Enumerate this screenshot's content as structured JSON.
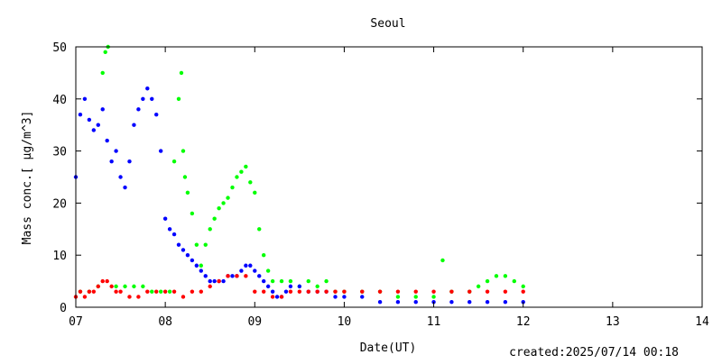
{
  "chart_data": {
    "type": "scatter",
    "title": "Seoul",
    "xlabel": "Date(UT)",
    "ylabel": "Mass conc.[ μg/m^3]",
    "xlim": [
      7,
      14
    ],
    "ylim": [
      0,
      50
    ],
    "xticks": [
      7,
      8,
      9,
      10,
      11,
      12,
      13,
      14
    ],
    "xtick_labels": [
      "07",
      "08",
      "09",
      "10",
      "11",
      "12",
      "13",
      "14"
    ],
    "yticks": [
      0,
      10,
      20,
      30,
      40,
      50
    ],
    "ytick_labels": [
      "0",
      "10",
      "20",
      "30",
      "40",
      "50"
    ],
    "grid": false,
    "series": [
      {
        "color": "#00ff00",
        "x": [
          7.05,
          7.15,
          7.25,
          7.3,
          7.33,
          7.36,
          7.45,
          7.55,
          7.65,
          7.75,
          7.85,
          7.95,
          8.05,
          8.1,
          8.15,
          8.18,
          8.2,
          8.22,
          8.25,
          8.3,
          8.35,
          8.4,
          8.45,
          8.5,
          8.55,
          8.6,
          8.65,
          8.7,
          8.75,
          8.8,
          8.85,
          8.9,
          8.95,
          9.0,
          9.05,
          9.1,
          9.15,
          9.2,
          9.3,
          9.4,
          9.5,
          9.6,
          9.7,
          9.8,
          9.9,
          10.0,
          10.2,
          10.4,
          10.6,
          10.8,
          11.0,
          11.1,
          11.2,
          11.4,
          11.5,
          11.6,
          11.7,
          11.8,
          11.9,
          12.0
        ],
        "y": [
          3,
          3,
          4,
          45,
          49,
          50,
          4,
          4,
          4,
          4,
          3,
          3,
          3,
          28,
          40,
          45,
          30,
          25,
          22,
          18,
          12,
          8,
          12,
          15,
          17,
          19,
          20,
          21,
          23,
          25,
          26,
          27,
          24,
          22,
          15,
          10,
          7,
          5,
          5,
          5,
          4,
          5,
          4,
          5,
          3,
          3,
          3,
          3,
          2,
          2,
          2,
          9,
          3,
          3,
          4,
          5,
          6,
          6,
          5,
          4
        ]
      },
      {
        "color": "#0000ff",
        "x": [
          7.0,
          7.05,
          7.1,
          7.15,
          7.2,
          7.25,
          7.3,
          7.35,
          7.4,
          7.45,
          7.5,
          7.55,
          7.6,
          7.65,
          7.7,
          7.75,
          7.8,
          7.85,
          7.9,
          7.95,
          8.0,
          8.05,
          8.1,
          8.15,
          8.2,
          8.25,
          8.3,
          8.35,
          8.4,
          8.45,
          8.5,
          8.55,
          8.6,
          8.65,
          8.7,
          8.75,
          8.8,
          8.85,
          8.9,
          8.95,
          9.0,
          9.05,
          9.1,
          9.15,
          9.2,
          9.25,
          9.3,
          9.35,
          9.4,
          9.5,
          9.6,
          9.7,
          9.8,
          9.9,
          10.0,
          10.2,
          10.4,
          10.6,
          10.8,
          11.0,
          11.2,
          11.4,
          11.6,
          11.8,
          12.0
        ],
        "y": [
          25,
          37,
          40,
          36,
          34,
          35,
          38,
          32,
          28,
          30,
          25,
          23,
          28,
          35,
          38,
          40,
          42,
          40,
          37,
          30,
          17,
          15,
          14,
          12,
          11,
          10,
          9,
          8,
          7,
          6,
          5,
          5,
          5,
          5,
          6,
          6,
          6,
          7,
          8,
          8,
          7,
          6,
          5,
          4,
          3,
          2,
          2,
          3,
          4,
          4,
          3,
          3,
          3,
          2,
          2,
          2,
          1,
          1,
          1,
          1,
          1,
          1,
          1,
          1,
          1
        ]
      },
      {
        "color": "#ff0000",
        "x": [
          7.0,
          7.05,
          7.1,
          7.15,
          7.2,
          7.25,
          7.3,
          7.35,
          7.4,
          7.45,
          7.5,
          7.6,
          7.7,
          7.8,
          7.9,
          8.0,
          8.1,
          8.2,
          8.3,
          8.4,
          8.5,
          8.6,
          8.7,
          8.8,
          8.9,
          9.0,
          9.1,
          9.2,
          9.3,
          9.4,
          9.5,
          9.6,
          9.7,
          9.8,
          9.9,
          10.0,
          10.2,
          10.4,
          10.6,
          10.8,
          11.0,
          11.2,
          11.4,
          11.6,
          11.8,
          12.0
        ],
        "y": [
          2,
          3,
          2,
          3,
          3,
          4,
          5,
          5,
          4,
          3,
          3,
          2,
          2,
          3,
          3,
          3,
          3,
          2,
          3,
          3,
          4,
          5,
          6,
          6,
          6,
          3,
          3,
          2,
          2,
          3,
          3,
          3,
          3,
          3,
          3,
          3,
          3,
          3,
          3,
          3,
          3,
          3,
          3,
          3,
          3,
          3
        ]
      }
    ]
  },
  "footer": {
    "created": "created:2025/07/14 00:18"
  }
}
